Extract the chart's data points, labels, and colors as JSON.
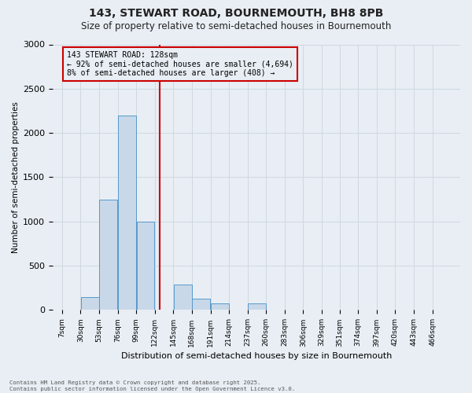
{
  "title_line1": "143, STEWART ROAD, BOURNEMOUTH, BH8 8PB",
  "title_line2": "Size of property relative to semi-detached houses in Bournemouth",
  "xlabel": "Distribution of semi-detached houses by size in Bournemouth",
  "ylabel": "Number of semi-detached properties",
  "bin_labels": [
    "7sqm",
    "30sqm",
    "53sqm",
    "76sqm",
    "99sqm",
    "122sqm",
    "145sqm",
    "168sqm",
    "191sqm",
    "214sqm",
    "237sqm",
    "260sqm",
    "283sqm",
    "306sqm",
    "329sqm",
    "351sqm",
    "374sqm",
    "397sqm",
    "420sqm",
    "443sqm",
    "466sqm"
  ],
  "bin_edges": [
    7,
    30,
    53,
    76,
    99,
    122,
    145,
    168,
    191,
    214,
    237,
    260,
    283,
    306,
    329,
    351,
    374,
    397,
    420,
    443,
    466
  ],
  "bar_heights": [
    0,
    150,
    1250,
    2200,
    1000,
    0,
    290,
    130,
    75,
    0,
    75,
    0,
    0,
    0,
    0,
    0,
    0,
    0,
    0,
    0
  ],
  "bar_color": "#c8d8e8",
  "bar_edge_color": "#5599cc",
  "grid_color": "#d0d8e0",
  "vline_x": 128,
  "vline_color": "#cc0000",
  "annotation_title": "143 STEWART ROAD: 128sqm",
  "annotation_line1": "← 92% of semi-detached houses are smaller (4,694)",
  "annotation_line2": "8% of semi-detached houses are larger (408) →",
  "annotation_box_color": "#cc0000",
  "ylim": [
    0,
    3000
  ],
  "yticks": [
    0,
    500,
    1000,
    1500,
    2000,
    2500,
    3000
  ],
  "footnote_line1": "Contains HM Land Registry data © Crown copyright and database right 2025.",
  "footnote_line2": "Contains public sector information licensed under the Open Government Licence v3.0.",
  "bg_color": "#e8eef4"
}
